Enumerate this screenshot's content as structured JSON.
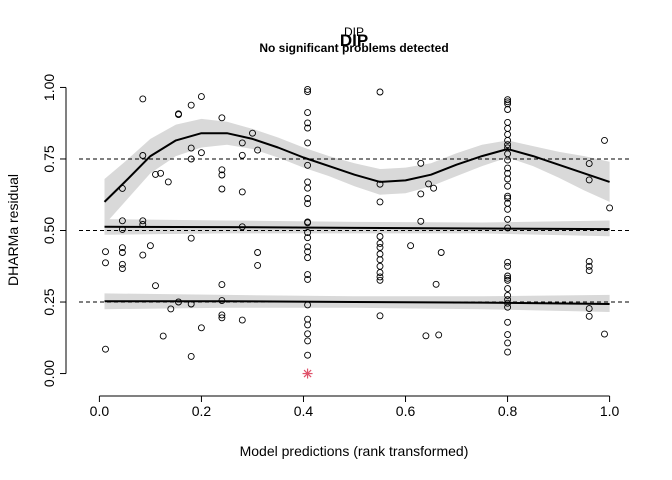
{
  "chart_data": {
    "type": "scatter",
    "title": "DIP",
    "title_overlay": "DIP",
    "subtitle": "No significant problems detected",
    "xlabel": "Model predictions (rank transformed)",
    "ylabel": "DHARMa residual",
    "xlim": [
      -0.04,
      1.04
    ],
    "ylim": [
      -0.04,
      1.04
    ],
    "x_ticks": [
      "0.0",
      "0.2",
      "0.4",
      "0.6",
      "0.8",
      "1.0"
    ],
    "x_tick_values": [
      0,
      0.2,
      0.4,
      0.6,
      0.8,
      1.0
    ],
    "y_ticks": [
      "0.00",
      "0.25",
      "0.50",
      "0.75",
      "1.00"
    ],
    "y_tick_values": [
      0,
      0.25,
      0.5,
      0.75,
      1.0
    ],
    "reference_lines": [
      0.25,
      0.5,
      0.75
    ],
    "grid": false,
    "colors": {
      "points": "#000000",
      "outlier": "#DF536B",
      "band": "#D9D9D9",
      "line": "#000000"
    },
    "points": [
      [
        0.012,
        0.426
      ],
      [
        0.012,
        0.387
      ],
      [
        0.012,
        0.085
      ],
      [
        0.045,
        0.647
      ],
      [
        0.045,
        0.534
      ],
      [
        0.045,
        0.504
      ],
      [
        0.045,
        0.44
      ],
      [
        0.045,
        0.423
      ],
      [
        0.045,
        0.382
      ],
      [
        0.045,
        0.367
      ],
      [
        0.085,
        0.96
      ],
      [
        0.085,
        0.762
      ],
      [
        0.085,
        0.534
      ],
      [
        0.085,
        0.521
      ],
      [
        0.085,
        0.414
      ],
      [
        0.1,
        0.447
      ],
      [
        0.11,
        0.307
      ],
      [
        0.11,
        0.696
      ],
      [
        0.12,
        0.7
      ],
      [
        0.125,
        0.131
      ],
      [
        0.135,
        0.67
      ],
      [
        0.14,
        0.226
      ],
      [
        0.155,
        0.908
      ],
      [
        0.155,
        0.905
      ],
      [
        0.155,
        0.25
      ],
      [
        0.18,
        0.938
      ],
      [
        0.18,
        0.788
      ],
      [
        0.18,
        0.75
      ],
      [
        0.18,
        0.473
      ],
      [
        0.18,
        0.243
      ],
      [
        0.18,
        0.06
      ],
      [
        0.2,
        0.968
      ],
      [
        0.2,
        0.772
      ],
      [
        0.2,
        0.16
      ],
      [
        0.24,
        0.894
      ],
      [
        0.24,
        0.712
      ],
      [
        0.24,
        0.694
      ],
      [
        0.24,
        0.645
      ],
      [
        0.24,
        0.311
      ],
      [
        0.24,
        0.255
      ],
      [
        0.24,
        0.205
      ],
      [
        0.24,
        0.195
      ],
      [
        0.28,
        0.806
      ],
      [
        0.28,
        0.763
      ],
      [
        0.28,
        0.635
      ],
      [
        0.28,
        0.513
      ],
      [
        0.28,
        0.187
      ],
      [
        0.3,
        0.84
      ],
      [
        0.31,
        0.781
      ],
      [
        0.31,
        0.423
      ],
      [
        0.31,
        0.378
      ],
      [
        0.408,
        0.993
      ],
      [
        0.408,
        0.985
      ],
      [
        0.408,
        0.912
      ],
      [
        0.408,
        0.876
      ],
      [
        0.408,
        0.858
      ],
      [
        0.408,
        0.806
      ],
      [
        0.408,
        0.728
      ],
      [
        0.408,
        0.67
      ],
      [
        0.408,
        0.648
      ],
      [
        0.408,
        0.612
      ],
      [
        0.408,
        0.594
      ],
      [
        0.408,
        0.53
      ],
      [
        0.408,
        0.527
      ],
      [
        0.408,
        0.493
      ],
      [
        0.408,
        0.475
      ],
      [
        0.408,
        0.443
      ],
      [
        0.408,
        0.426
      ],
      [
        0.408,
        0.405
      ],
      [
        0.408,
        0.346
      ],
      [
        0.408,
        0.329
      ],
      [
        0.408,
        0.24
      ],
      [
        0.408,
        0.19
      ],
      [
        0.408,
        0.17
      ],
      [
        0.408,
        0.139
      ],
      [
        0.408,
        0.114
      ],
      [
        0.408,
        0.064
      ],
      [
        0.55,
        0.984
      ],
      [
        0.55,
        0.662
      ],
      [
        0.55,
        0.6
      ],
      [
        0.55,
        0.479
      ],
      [
        0.55,
        0.455
      ],
      [
        0.55,
        0.441
      ],
      [
        0.55,
        0.418
      ],
      [
        0.55,
        0.398
      ],
      [
        0.55,
        0.375
      ],
      [
        0.55,
        0.353
      ],
      [
        0.55,
        0.338
      ],
      [
        0.55,
        0.326
      ],
      [
        0.55,
        0.202
      ],
      [
        0.61,
        0.447
      ],
      [
        0.63,
        0.735
      ],
      [
        0.63,
        0.628
      ],
      [
        0.63,
        0.532
      ],
      [
        0.64,
        0.132
      ],
      [
        0.645,
        0.663
      ],
      [
        0.655,
        0.648
      ],
      [
        0.66,
        0.312
      ],
      [
        0.665,
        0.135
      ],
      [
        0.67,
        0.423
      ],
      [
        0.8,
        0.957
      ],
      [
        0.8,
        0.95
      ],
      [
        0.8,
        0.943
      ],
      [
        0.8,
        0.923
      ],
      [
        0.8,
        0.878
      ],
      [
        0.8,
        0.857
      ],
      [
        0.8,
        0.836
      ],
      [
        0.8,
        0.815
      ],
      [
        0.8,
        0.8
      ],
      [
        0.8,
        0.789
      ],
      [
        0.8,
        0.768
      ],
      [
        0.8,
        0.746
      ],
      [
        0.8,
        0.718
      ],
      [
        0.8,
        0.7
      ],
      [
        0.8,
        0.68
      ],
      [
        0.8,
        0.655
      ],
      [
        0.8,
        0.62
      ],
      [
        0.8,
        0.613
      ],
      [
        0.8,
        0.595
      ],
      [
        0.8,
        0.574
      ],
      [
        0.8,
        0.539
      ],
      [
        0.8,
        0.509
      ],
      [
        0.8,
        0.389
      ],
      [
        0.8,
        0.375
      ],
      [
        0.8,
        0.341
      ],
      [
        0.8,
        0.333
      ],
      [
        0.8,
        0.326
      ],
      [
        0.8,
        0.297
      ],
      [
        0.8,
        0.273
      ],
      [
        0.8,
        0.258
      ],
      [
        0.8,
        0.246
      ],
      [
        0.8,
        0.232
      ],
      [
        0.8,
        0.179
      ],
      [
        0.8,
        0.136
      ],
      [
        0.8,
        0.107
      ],
      [
        0.8,
        0.075
      ],
      [
        0.96,
        0.734
      ],
      [
        0.96,
        0.677
      ],
      [
        0.96,
        0.392
      ],
      [
        0.96,
        0.375
      ],
      [
        0.96,
        0.36
      ],
      [
        0.96,
        0.227
      ],
      [
        0.96,
        0.2
      ],
      [
        0.99,
        0.815
      ],
      [
        0.99,
        0.138
      ],
      [
        1.0,
        0.579
      ]
    ],
    "outliers": [
      [
        0.408,
        0.0
      ]
    ],
    "quantile_curves": [
      {
        "name": "0.75",
        "x": [
          0.01,
          0.05,
          0.1,
          0.15,
          0.2,
          0.25,
          0.3,
          0.35,
          0.4,
          0.45,
          0.5,
          0.55,
          0.6,
          0.65,
          0.7,
          0.75,
          0.8,
          0.85,
          0.9,
          0.95,
          1.0
        ],
        "y": [
          0.6,
          0.67,
          0.76,
          0.815,
          0.84,
          0.84,
          0.82,
          0.79,
          0.755,
          0.725,
          0.695,
          0.67,
          0.675,
          0.695,
          0.73,
          0.76,
          0.785,
          0.76,
          0.73,
          0.7,
          0.67
        ],
        "lower": [
          0.52,
          0.6,
          0.7,
          0.76,
          0.79,
          0.8,
          0.785,
          0.755,
          0.72,
          0.69,
          0.655,
          0.625,
          0.63,
          0.655,
          0.69,
          0.725,
          0.755,
          0.725,
          0.685,
          0.64,
          0.6
        ],
        "upper": [
          0.68,
          0.74,
          0.82,
          0.87,
          0.89,
          0.88,
          0.855,
          0.825,
          0.79,
          0.76,
          0.735,
          0.715,
          0.72,
          0.735,
          0.77,
          0.8,
          0.815,
          0.795,
          0.775,
          0.76,
          0.74
        ]
      },
      {
        "name": "0.50",
        "x": [
          0.01,
          0.25,
          0.5,
          0.75,
          1.0
        ],
        "y": [
          0.513,
          0.512,
          0.509,
          0.507,
          0.505
        ],
        "lower": [
          0.485,
          0.49,
          0.49,
          0.49,
          0.48
        ],
        "upper": [
          0.54,
          0.535,
          0.53,
          0.528,
          0.535
        ]
      },
      {
        "name": "0.25",
        "x": [
          0.01,
          0.25,
          0.5,
          0.75,
          1.0
        ],
        "y": [
          0.253,
          0.253,
          0.25,
          0.248,
          0.243
        ],
        "lower": [
          0.225,
          0.23,
          0.23,
          0.225,
          0.215
        ],
        "upper": [
          0.28,
          0.275,
          0.27,
          0.27,
          0.275
        ]
      }
    ]
  }
}
